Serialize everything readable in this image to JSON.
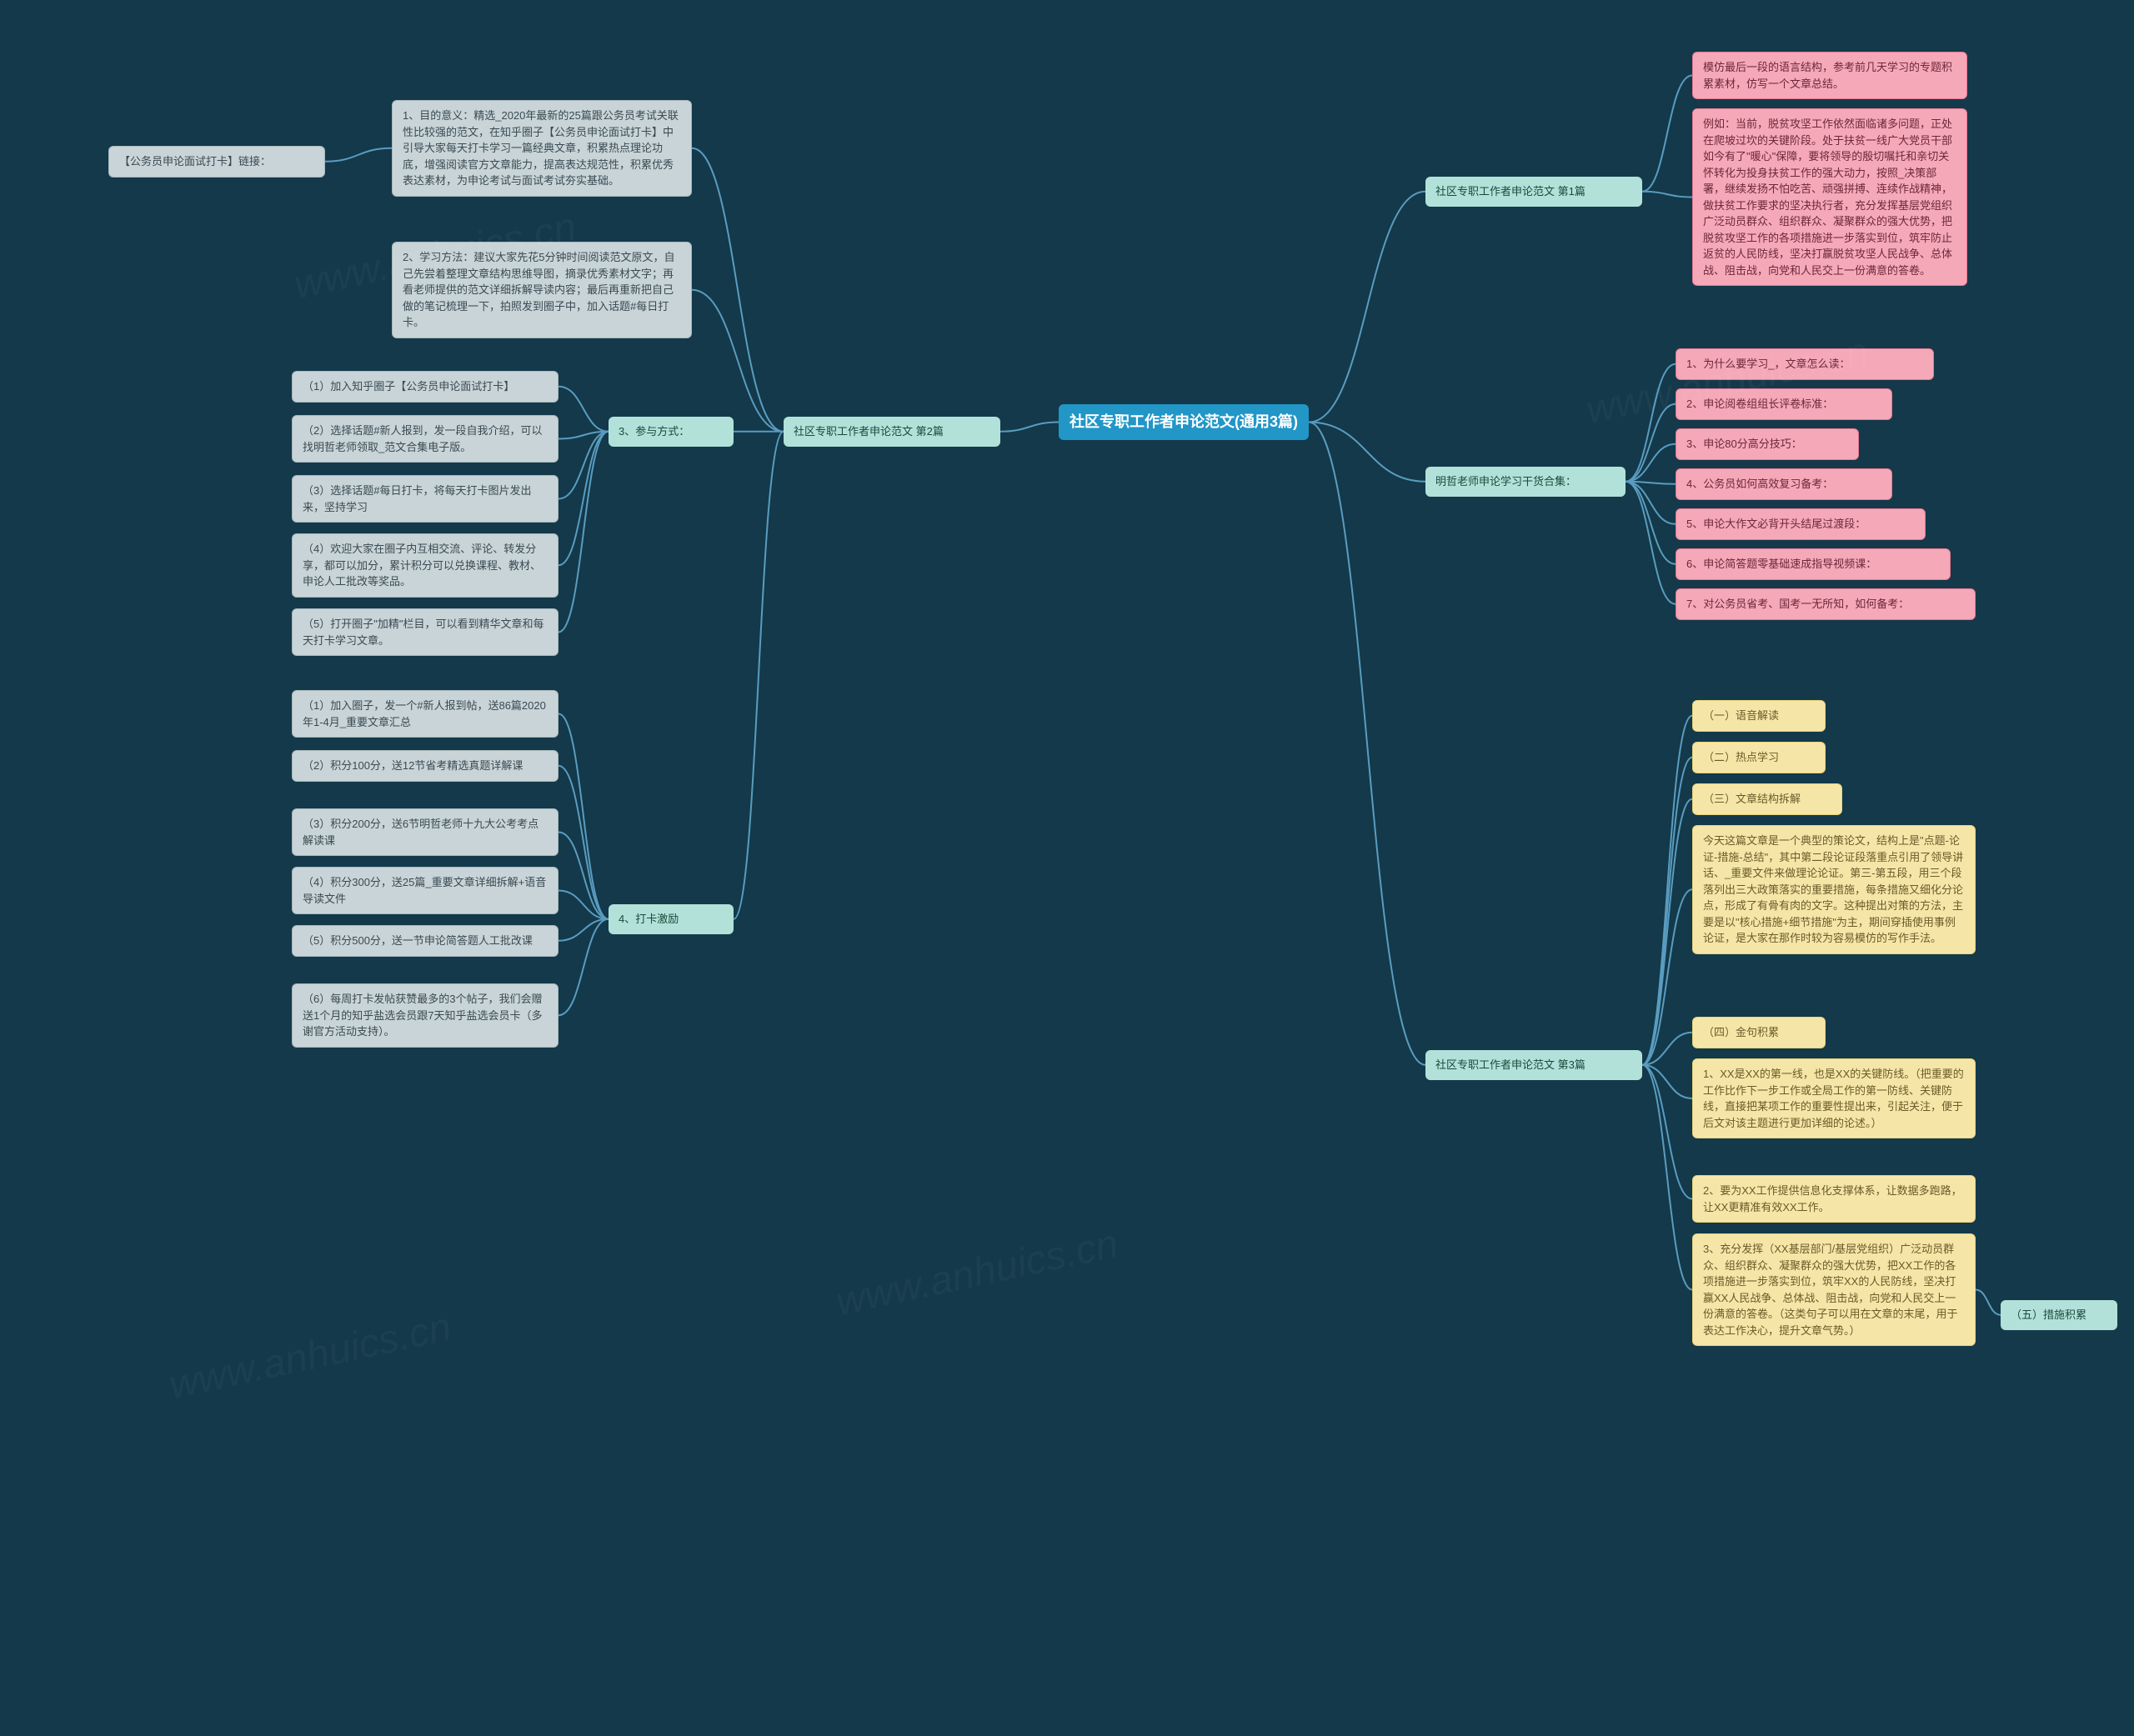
{
  "colors": {
    "bg": "#13394a",
    "root_bg": "#2196c7",
    "root_fg": "#ffffff",
    "level1_bg": "#b2e1d9",
    "level1_fg": "#1a4a3a",
    "pink_bg": "#f5a8b8",
    "pink_fg": "#6b2838",
    "pink_bd": "#e87a93",
    "yellow_bg": "#f5e6a8",
    "yellow_fg": "#6b5a28",
    "yellow_bd": "#e8d47a",
    "grey_bg": "#c8d4d8",
    "grey_fg": "#3a4a52",
    "grey_bd": "#a8b8bc",
    "link": "#5a9cc0"
  },
  "root": {
    "text": "社区专职工作者申论范文(通用3篇)"
  },
  "branch1": {
    "title": "社区专职工作者申论范文 第1篇",
    "n1": "模仿最后一段的语言结构，参考前几天学习的专题积累素材，仿写一个文章总结。",
    "n2": "例如：当前，脱贫攻坚工作依然面临诸多问题，正处在爬坡过坎的关键阶段。处于扶贫一线广大党员干部如今有了\"暖心\"保障，要将领导的殷切嘱托和亲切关怀转化为投身扶贫工作的强大动力，按照_决策部署，继续发扬不怕吃苦、顽强拼搏、连续作战精神，做扶贫工作要求的坚决执行者，充分发挥基层党组织广泛动员群众、组织群众、凝聚群众的强大优势，把脱贫攻坚工作的各项措施进一步落实到位，筑牢防止返贫的人民防线，坚决打赢脱贫攻坚人民战争、总体战、阻击战，向党和人民交上一份满意的答卷。",
    "n3": {
      "text": "明哲老师申论学习干货合集："
    },
    "n3_children": [
      "1、为什么要学习_，文章怎么读：",
      "2、申论阅卷组组长评卷标准：",
      "3、申论80分高分技巧：",
      "4、公务员如何高效复习备考：",
      "5、申论大作文必背开头结尾过渡段：",
      "6、申论简答题零基础速成指导视频课：",
      "7、对公务员省考、国考一无所知，如何备考："
    ]
  },
  "branch2": {
    "title": "社区专职工作者申论范文 第2篇",
    "top_link": "【公务员申论面试打卡】链接：",
    "items": [
      {
        "label": "",
        "text": "1、目的意义：精选_2020年最新的25篇跟公务员考试关联性比较强的范文，在知乎圈子【公务员申论面试打卡】中引导大家每天打卡学习一篇经典文章，积累热点理论功底，增强阅读官方文章能力，提高表达规范性，积累优秀表达素材，为申论考试与面试考试夯实基础。"
      },
      {
        "label": "",
        "text": "2、学习方法：建议大家先花5分钟时间阅读范文原文，自己先尝着整理文章结构思维导图，摘录优秀素材文字；再看老师提供的范文详细拆解导读内容；最后再重新把自己做的笔记梳理一下，拍照发到圈子中，加入话题#每日打卡。"
      },
      {
        "label": "3、参与方式：",
        "children": [
          "（1）加入知乎圈子【公务员申论面试打卡】",
          "（2）选择话题#新人报到，发一段自我介绍，可以找明哲老师领取_范文合集电子版。",
          "（3）选择话题#每日打卡，将每天打卡图片发出来，坚持学习",
          "（4）欢迎大家在圈子内互相交流、评论、转发分享，都可以加分，累计积分可以兑换课程、教材、申论人工批改等奖品。",
          "（5）打开圈子\"加精\"栏目，可以看到精华文章和每天打卡学习文章。"
        ]
      },
      {
        "label": "4、打卡激励",
        "children": [
          "（1）加入圈子，发一个#新人报到帖，送86篇2020年1-4月_重要文章汇总",
          "（2）积分100分，送12节省考精选真题详解课",
          "（3）积分200分，送6节明哲老师十九大公考考点解读课",
          "（4）积分300分，送25篇_重要文章详细拆解+语音导读文件",
          "（5）积分500分，送一节申论简答题人工批改课",
          "（6）每周打卡发帖获赞最多的3个帖子，我们会赠送1个月的知乎盐选会员跟7天知乎盐选会员卡（多谢官方活动支持）。"
        ]
      }
    ]
  },
  "branch3": {
    "title": "社区专职工作者申论范文 第3篇",
    "items_yellow": [
      "（一）语音解读",
      "（二）热点学习",
      "（三）文章结构拆解",
      "今天这篇文章是一个典型的策论文，结构上是\"点题-论证-措施-总结\"，其中第二段论证段落重点引用了领导讲话、_重要文件来做理论论证。第三-第五段，用三个段落列出三大政策落实的重要措施，每条措施又细化分论点，形成了有骨有肉的文字。这种提出对策的方法，主要是以\"核心措施+细节措施\"为主，期间穿插使用事例论证，是大家在那作时较为容易模仿的写作手法。",
      "（四）金句积累",
      "1、XX是XX的第一线，也是XX的关键防线。（把重要的工作比作下一步工作或全局工作的第一防线、关键防线，直接把某项工作的重要性提出来，引起关注，便于后文对该主题进行更加详细的论述。）",
      "2、要为XX工作提供信息化支撑体系，让数据多跑路，让XX更精准有效XX工作。",
      "3、充分发挥（XX基层部门/基层党组织）广泛动员群众、组织群众、凝聚群众的强大优势，把XX工作的各项措施进一步落实到位，筑牢XX的人民防线，坚决打赢XX人民战争、总体战、阻击战，向党和人民交上一份满意的答卷。（这类句子可以用在文章的末尾，用于表达工作决心，提升文章气势。）"
    ],
    "tail": "（五）措施积累"
  },
  "watermarks": [
    "www.anhuics.cn"
  ]
}
